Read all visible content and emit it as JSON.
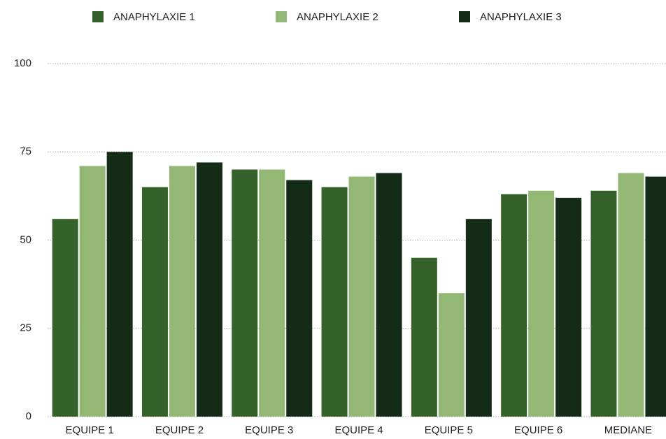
{
  "chart_data": {
    "type": "bar",
    "categories": [
      "EQUIPE 1",
      "EQUIPE 2",
      "EQUIPE 3",
      "EQUIPE 4",
      "EQUIPE 5",
      "EQUIPE 6",
      "MEDIANE"
    ],
    "series": [
      {
        "name": "ANAPHYLAXIE 1",
        "color": "#35622b",
        "values": [
          56,
          65,
          70,
          65,
          45,
          63,
          64
        ]
      },
      {
        "name": "ANAPHYLAXIE 2",
        "color": "#93b775",
        "values": [
          71,
          71,
          70,
          68,
          35,
          64,
          69
        ]
      },
      {
        "name": "ANAPHYLAXIE 3",
        "color": "#132b17",
        "values": [
          75,
          72,
          67,
          69,
          56,
          62,
          68
        ]
      }
    ],
    "ylim": [
      0,
      100
    ],
    "yticks": [
      0,
      25,
      50,
      75,
      100
    ],
    "grid": true,
    "legend": "top"
  }
}
